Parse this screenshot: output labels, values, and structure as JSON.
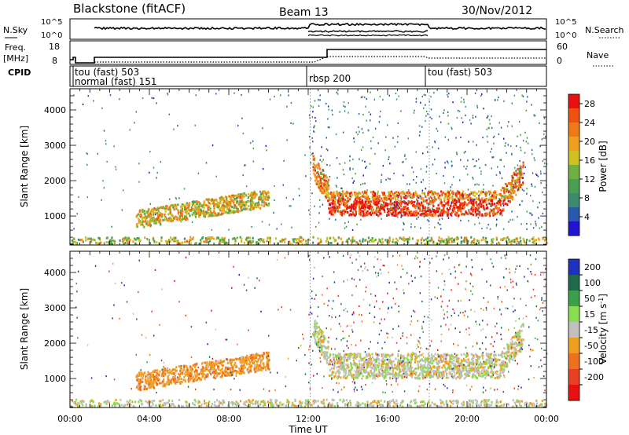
{
  "header": {
    "station": "Blackstone (fitACF)",
    "beam": "Beam 13",
    "date": "30/Nov/2012"
  },
  "strips": {
    "nsky_label": "N.Sky",
    "nsky_ticks": [
      "10^5",
      "10^0"
    ],
    "nsearch_label": "N.Search",
    "nsearch_ticks": [
      "10^5",
      "10^0"
    ],
    "freq_label": "Freq.",
    "freq_unit": "[MHz]",
    "freq_ticks": [
      "18",
      "8"
    ],
    "nave_label": "Nave",
    "nave_ticks": [
      "60",
      "0"
    ],
    "cpid_label": "CPID",
    "cpid_segments": [
      "tou (fast) 503",
      "normal (fast) 151",
      "rbsp 200",
      "tou (fast) 503"
    ]
  },
  "chart_data": [
    {
      "type": "heatmap",
      "title": "",
      "ylabel": "Slant Range [km]",
      "xlabel": "",
      "x_ticks": [
        "00:00",
        "04:00",
        "08:00",
        "12:00",
        "16:00",
        "20:00",
        "00:00"
      ],
      "y_ticks": [
        1000,
        2000,
        3000,
        4000
      ],
      "ylim": [
        180,
        4600
      ],
      "xlim_hours": [
        0,
        24
      ],
      "colorbar": {
        "label": "Power [dB]",
        "ticks": [
          4,
          8,
          12,
          16,
          20,
          24,
          28
        ],
        "range": [
          0,
          30
        ],
        "colors": [
          "#1e14d2",
          "#2a5ab0",
          "#3c8a70",
          "#48a050",
          "#70b040",
          "#d0c020",
          "#f0a020",
          "#f07818",
          "#f05010",
          "#e81010"
        ]
      },
      "features": [
        {
          "name": "near-range ground scatter",
          "x_hours": [
            0,
            24
          ],
          "range_km": [
            200,
            400
          ],
          "value": 14
        },
        {
          "name": "evening band",
          "x_hours": [
            3.3,
            10
          ],
          "range_km": [
            700,
            1500
          ],
          "value": 16
        },
        {
          "name": "night band",
          "x_hours": [
            12.2,
            22.8
          ],
          "range_km": [
            1000,
            2000
          ],
          "value": 20
        }
      ]
    },
    {
      "type": "heatmap",
      "title": "",
      "ylabel": "Slant Range [km]",
      "xlabel": "Time UT",
      "x_ticks": [
        "00:00",
        "04:00",
        "08:00",
        "12:00",
        "16:00",
        "20:00",
        "00:00"
      ],
      "y_ticks": [
        1000,
        2000,
        3000,
        4000
      ],
      "ylim": [
        180,
        4600
      ],
      "xlim_hours": [
        0,
        24
      ],
      "colorbar": {
        "label": "Velocity [m s^-1]",
        "ticks": [
          "200",
          "100",
          "50",
          "15",
          "-15",
          "-50",
          "-100",
          "-200"
        ],
        "colors": [
          "#2030c0",
          "#1f6a4a",
          "#3aa04a",
          "#8adc50",
          "#c0c0c0",
          "#f0a020",
          "#f07020",
          "#e84020",
          "#e81010"
        ]
      },
      "features": [
        {
          "name": "near-range ground scatter",
          "x_hours": [
            0,
            24
          ],
          "range_km": [
            200,
            400
          ],
          "value": 0
        },
        {
          "name": "evening band",
          "x_hours": [
            3.3,
            10
          ],
          "range_km": [
            700,
            1500
          ],
          "value": -40
        },
        {
          "name": "night band",
          "x_hours": [
            12.2,
            22.8
          ],
          "range_km": [
            1000,
            2000
          ],
          "value": 0
        }
      ]
    }
  ]
}
